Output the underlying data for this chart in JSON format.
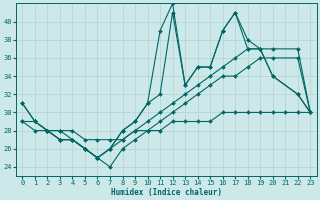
{
  "xlabel": "Humidex (Indice chaleur)",
  "xlim": [
    -0.5,
    23.5
  ],
  "ylim": [
    23,
    42
  ],
  "yticks": [
    24,
    26,
    28,
    30,
    32,
    34,
    36,
    38,
    40
  ],
  "xticks": [
    0,
    1,
    2,
    3,
    4,
    5,
    6,
    7,
    8,
    9,
    10,
    11,
    12,
    13,
    14,
    15,
    16,
    17,
    18,
    19,
    20,
    21,
    22,
    23
  ],
  "bg_color": "#cce8e8",
  "line_color": "#006666",
  "grid_color": "#b8d4d4",
  "lines": [
    {
      "x": [
        0,
        1,
        2,
        3,
        4,
        5,
        6,
        7,
        8,
        9,
        10,
        11,
        12,
        13,
        14,
        15,
        16,
        17,
        18,
        19,
        20,
        22,
        23
      ],
      "y": [
        31,
        29,
        28,
        27,
        27,
        26,
        25,
        26,
        28,
        29,
        31,
        39,
        42,
        33,
        35,
        35,
        39,
        41,
        38,
        37,
        34,
        32,
        30
      ]
    },
    {
      "x": [
        0,
        1,
        2,
        3,
        4,
        5,
        6,
        7,
        8,
        9,
        10,
        11,
        12,
        13,
        14,
        15,
        16,
        17,
        18,
        19,
        20,
        22,
        23
      ],
      "y": [
        31,
        29,
        28,
        27,
        27,
        26,
        25,
        26,
        28,
        29,
        31,
        32,
        41,
        33,
        35,
        35,
        39,
        41,
        37,
        37,
        34,
        32,
        30
      ]
    },
    {
      "x": [
        0,
        1,
        2,
        3,
        4,
        5,
        6,
        7,
        8,
        9,
        10,
        11,
        12,
        13,
        14,
        15,
        16,
        17,
        18,
        19,
        20,
        22,
        23
      ],
      "y": [
        29,
        29,
        28,
        28,
        27,
        26,
        25,
        26,
        27,
        28,
        29,
        30,
        31,
        32,
        33,
        34,
        35,
        36,
        37,
        37,
        37,
        37,
        30
      ]
    },
    {
      "x": [
        0,
        1,
        2,
        3,
        4,
        5,
        6,
        7,
        8,
        9,
        10,
        11,
        12,
        13,
        14,
        15,
        16,
        17,
        18,
        19,
        20,
        21,
        22,
        23
      ],
      "y": [
        29,
        28,
        28,
        28,
        28,
        27,
        27,
        27,
        27,
        28,
        28,
        28,
        29,
        29,
        29,
        29,
        30,
        30,
        30,
        30,
        30,
        30,
        30,
        30
      ]
    },
    {
      "x": [
        2,
        3,
        4,
        5,
        6,
        7,
        8,
        9,
        10,
        11,
        12,
        13,
        14,
        15,
        16,
        17,
        18,
        19,
        20,
        22,
        23
      ],
      "y": [
        28,
        27,
        27,
        26,
        25,
        24,
        26,
        27,
        28,
        29,
        30,
        31,
        32,
        33,
        34,
        34,
        35,
        36,
        36,
        36,
        30
      ]
    }
  ]
}
